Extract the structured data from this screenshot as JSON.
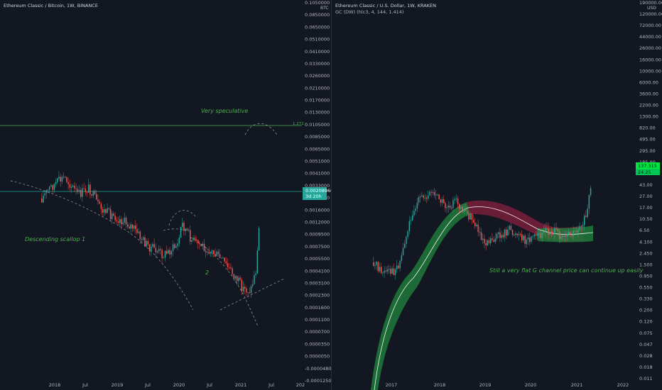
{
  "left": {
    "title": "Ethereum Classic / Bitcoin, 1W, BINANCE",
    "currency": "BTC",
    "price_labels": [
      "0.1050000",
      "0.0850000",
      "0.0650000",
      "0.0510000",
      "0.0410000",
      "0.0330000",
      "0.0260000",
      "0.0210000",
      "0.0170000",
      "0.0130000",
      "0.0105000",
      "0.0085000",
      "0.0065000",
      "0.0051000",
      "0.0041000",
      "0.0033000",
      "0.0026000",
      "0.0016000",
      "0.0012000",
      "0.0009500",
      "0.0007500",
      "0.0005500",
      "0.0004100",
      "0.0003100",
      "0.0002300",
      "0.0001600",
      "0.0001100",
      "0.0000700",
      "0.0000350",
      "0.0000050",
      "-0.0000480",
      "-0.0001250"
    ],
    "last_price": "0.00208966",
    "countdown": "3d 20h",
    "fib_label": "1.272",
    "time_labels": [
      "2018",
      "Jul",
      "2019",
      "Jul",
      "2020",
      "Jul",
      "2021",
      "Jul",
      "202"
    ],
    "annotations": {
      "very_speculative": "Very speculative",
      "scallop": "Descending scallop 1",
      "two": "2"
    }
  },
  "right": {
    "title": "Ethereum Classic / U.S. Dollar, 1W, KRAKEN",
    "indicator": "GC (DW) (hlc3, 4, 144, 1.414)",
    "currency": "USD",
    "price_labels": [
      "190000.000",
      "120000.00",
      "72000.00",
      "44000.00",
      "26000.00",
      "16000.00",
      "10000.00",
      "6000.00",
      "3600.00",
      "2200.00",
      "1300.00",
      "820.00",
      "495.00",
      "295.00",
      "185.00",
      "71.00",
      "43.00",
      "27.00",
      "17.00",
      "10.50",
      "6.50",
      "4.100",
      "2.450",
      "1.500",
      "0.950",
      "0.550",
      "0.330",
      "0.200",
      "0.120",
      "0.075",
      "0.047",
      "0.028",
      "0.018",
      "0.011"
    ],
    "last_price": "137.315",
    "ma_price": "24.25",
    "time_labels": [
      "2017",
      "2018",
      "2019",
      "2020",
      "2021",
      "2022"
    ],
    "annotation": "Still a very flat G channel price can continue up easily"
  },
  "colors": {
    "background": "#131722",
    "up": "#26a69a",
    "down": "#ef5350",
    "green_line": "#4caf50",
    "annotation_green": "#4caf50",
    "channel_green": "#1e7a3a",
    "channel_red": "#7a1e3a"
  }
}
